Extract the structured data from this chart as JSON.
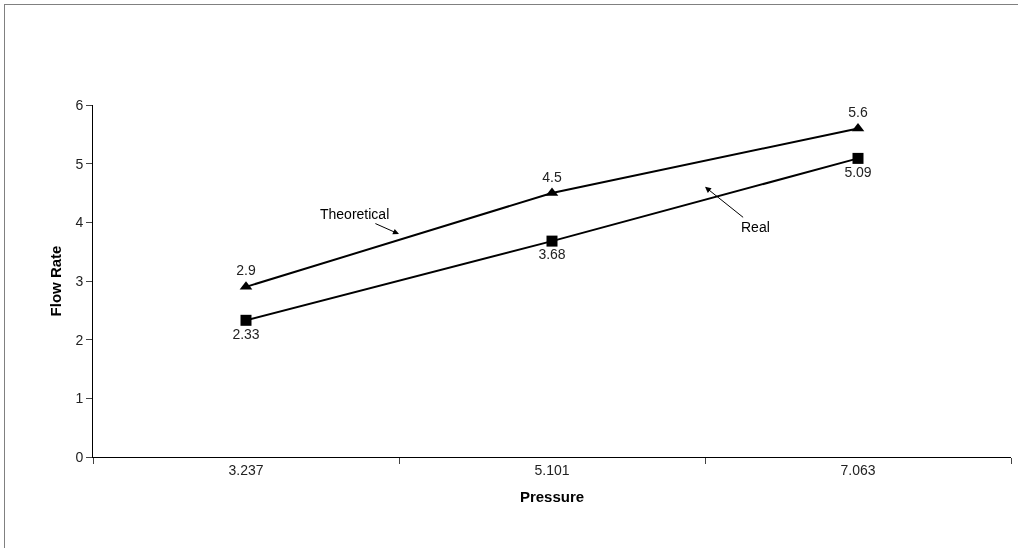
{
  "chart_data": {
    "type": "line",
    "xlabel": "Pressure",
    "ylabel": "Flow Rate",
    "categories": [
      "3.237",
      "5.101",
      "7.063"
    ],
    "series": [
      {
        "name": "Theoretical",
        "color": "#000000",
        "marker": "triangle",
        "values": [
          2.9,
          4.5,
          5.6
        ]
      },
      {
        "name": "Real",
        "color": "#000000",
        "marker": "square",
        "values": [
          2.33,
          3.68,
          5.09
        ]
      }
    ],
    "ylim": [
      0,
      6
    ],
    "yticks": [
      0,
      1,
      2,
      3,
      4,
      5,
      6
    ],
    "grid": false,
    "legend": false,
    "data_labels": true,
    "line_style": "solid"
  }
}
